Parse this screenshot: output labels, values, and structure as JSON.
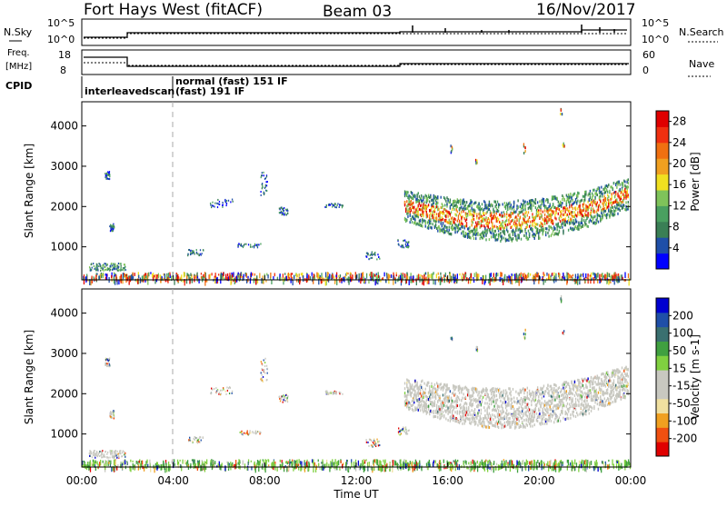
{
  "header": {
    "station": "Fort Hays West (fitACF)",
    "beam": "Beam 03",
    "date": "16/Nov/2017"
  },
  "noise_panel": {
    "left_label": "N.Sky",
    "right_label": "N.Search",
    "left_ticks": [
      "10^5",
      "10^0"
    ],
    "right_ticks": [
      "10^5",
      "10^0"
    ]
  },
  "freq_panel": {
    "left_label_top": "Freq.",
    "left_label_unit": "[MHz]",
    "left_ticks": [
      "18",
      "8"
    ],
    "right_label": "Nave",
    "right_ticks": [
      "60",
      "0"
    ]
  },
  "cpid": {
    "label": "CPID",
    "modes": [
      "interleavedscan",
      "normal (fast)  151  IF",
      "(fast)  191  IF"
    ]
  },
  "colors": {
    "power_scale": [
      "#0000ff",
      "#1f4fa8",
      "#3a7f55",
      "#4aa060",
      "#7fc35a",
      "#f0e020",
      "#f0a020",
      "#f07010",
      "#f03010",
      "#e00000"
    ],
    "velocity_scale": [
      "#e00000",
      "#f05010",
      "#f0a020",
      "#f0e0a0",
      "#c8c8c0",
      "#c8c8c0",
      "#80d040",
      "#40a040",
      "#3a7070",
      "#1f4fa8",
      "#0000d0"
    ]
  },
  "chart_data": [
    {
      "type": "heatmap",
      "name": "power",
      "ylabel": "Slant Range [km]",
      "yticks": [
        "1000",
        "2000",
        "3000",
        "4000"
      ],
      "ylim": [
        180,
        4600
      ],
      "xlim": [
        0,
        24
      ],
      "colorbar": {
        "label": "Power [dB]",
        "ticks": [
          "4",
          "8",
          "12",
          "16",
          "20",
          "24",
          "28"
        ],
        "range": [
          0,
          30
        ]
      },
      "features": [
        {
          "feature": "ground scatter band",
          "x": [
            0,
            24
          ],
          "y_range_km": [
            180,
            400
          ]
        },
        {
          "feature": "far range echoes",
          "x": [
            14.1,
            24
          ],
          "y_range_km": [
            1300,
            2800
          ],
          "peak_power_db": 28
        }
      ]
    },
    {
      "type": "heatmap",
      "name": "velocity",
      "ylabel": "Slant Range [km]",
      "yticks": [
        "1000",
        "2000",
        "3000",
        "4000"
      ],
      "ylim": [
        180,
        4600
      ],
      "xlim": [
        0,
        24
      ],
      "colorbar": {
        "label": "Velocity [m s-1]",
        "ticks": [
          "200",
          "100",
          "50",
          "15",
          "-15",
          "-50",
          "-100",
          "-200"
        ]
      },
      "features": [
        {
          "feature": "far range echoes",
          "x": [
            14.1,
            24
          ],
          "y_range_km": [
            1300,
            2800
          ],
          "velocity_range": [
            -15,
            15
          ]
        }
      ]
    }
  ],
  "x_axis": {
    "ticks": [
      "00:00",
      "04:00",
      "08:00",
      "12:00",
      "16:00",
      "20:00",
      "00:00"
    ],
    "label": "Time UT"
  }
}
